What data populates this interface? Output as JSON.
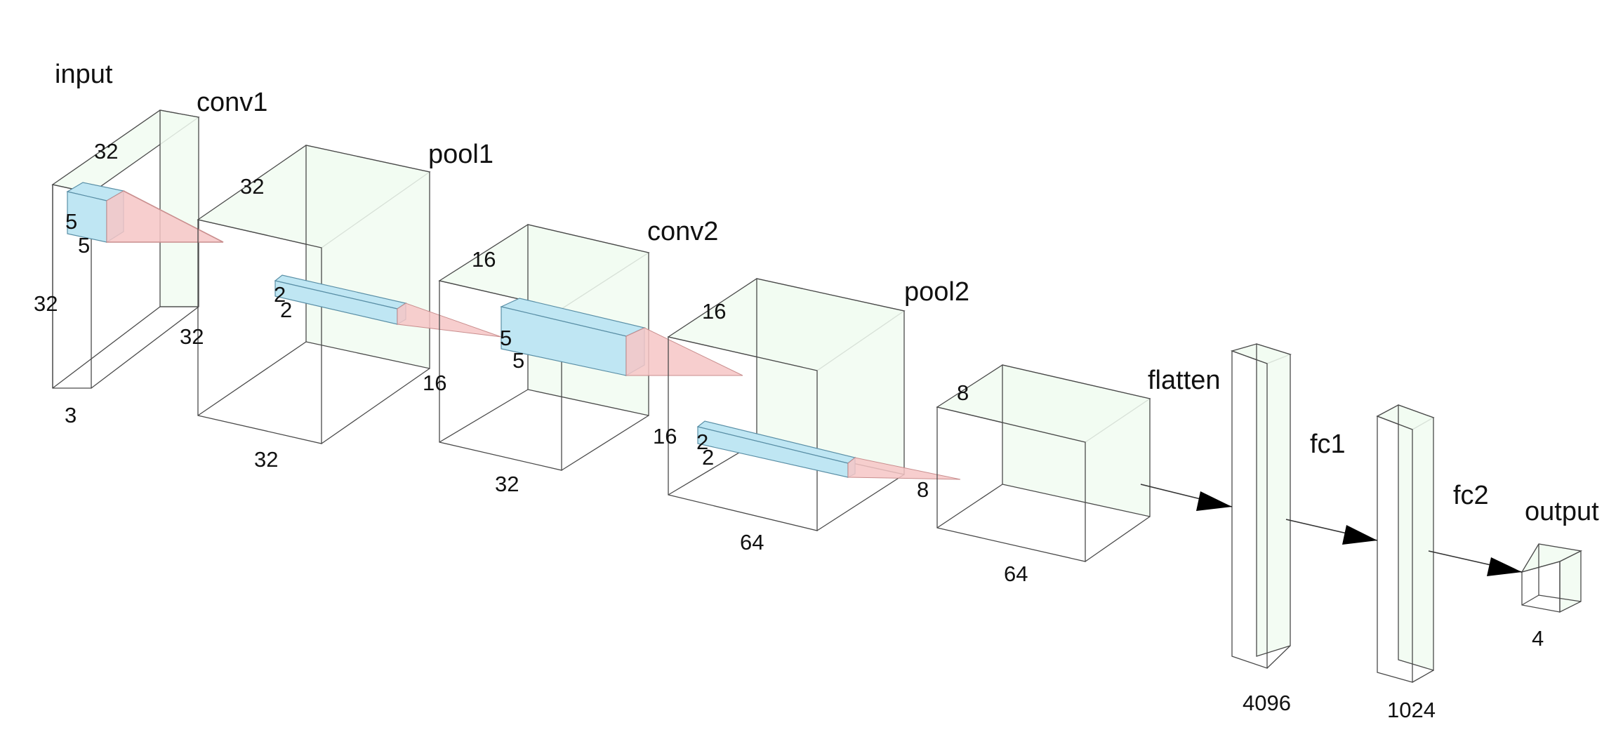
{
  "layers": [
    {
      "name": "input",
      "dims": [
        "32",
        "32",
        "3"
      ]
    },
    {
      "name": "conv1",
      "dims": [
        "32",
        "32",
        "32"
      ]
    },
    {
      "name": "pool1",
      "dims": [
        "16",
        "16",
        "32"
      ]
    },
    {
      "name": "conv2",
      "dims": [
        "16",
        "16",
        "64"
      ]
    },
    {
      "name": "pool2",
      "dims": [
        "8",
        "8",
        "64"
      ]
    },
    {
      "name": "flatten",
      "dims": [
        "4096"
      ]
    },
    {
      "name": "fc1",
      "dims": [
        "1024"
      ]
    },
    {
      "name": "fc2",
      "dims": [
        "4"
      ]
    },
    {
      "name": "output",
      "dims": []
    }
  ],
  "kernels": [
    {
      "from": "input",
      "size": [
        "5",
        "5"
      ]
    },
    {
      "from": "conv1",
      "size": [
        "2",
        "2"
      ]
    },
    {
      "from": "pool1",
      "size": [
        "5",
        "5"
      ]
    },
    {
      "from": "conv2",
      "size": [
        "2",
        "2"
      ]
    }
  ],
  "colors": {
    "layer_fill": "#f1fbf1",
    "kernel_fill": "#bfe6f3",
    "cone_fill": "#f6c6c6",
    "edge": "#4a4a4a",
    "arrow": "#000000"
  }
}
